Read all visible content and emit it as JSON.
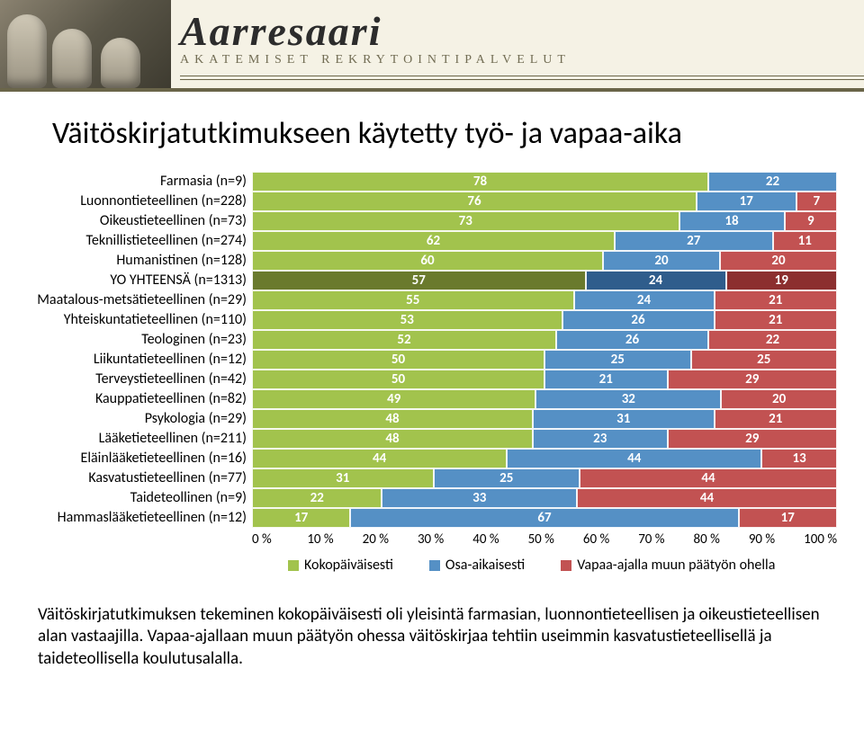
{
  "banner": {
    "brand": "Aarresaari",
    "subtitle": "Akatemiset Rekrytointipalvelut"
  },
  "title": "Väitöskirjatutkimukseen käytetty työ- ja vapaa-aika",
  "chart": {
    "type": "stacked-bar-horizontal",
    "xticks": [
      "0 %",
      "10 %",
      "20 %",
      "30 %",
      "40 %",
      "50 %",
      "60 %",
      "70 %",
      "80 %",
      "90 %",
      "100 %"
    ],
    "series": [
      {
        "key": "full",
        "label": "Kokopäiväisesti",
        "color": "#a2c34d"
      },
      {
        "key": "part",
        "label": "Osa-aikaisesti",
        "color": "#5590c5"
      },
      {
        "key": "side",
        "label": "Vapaa-ajalla muun päätyön ohella",
        "color": "#c25252"
      }
    ],
    "total_row_index": 5,
    "total_colors": {
      "full": "#6a7a2d",
      "part": "#2f5d8c",
      "side": "#8c2f2f"
    },
    "categories": [
      {
        "label": "Farmasia (n=9)",
        "v": [
          78,
          22,
          0
        ]
      },
      {
        "label": "Luonnontieteellinen (n=228)",
        "v": [
          76,
          17,
          7
        ]
      },
      {
        "label": "Oikeustieteellinen (n=73)",
        "v": [
          73,
          18,
          9
        ]
      },
      {
        "label": "Teknillistieteellinen (n=274)",
        "v": [
          62,
          27,
          11
        ]
      },
      {
        "label": "Humanistinen (n=128)",
        "v": [
          60,
          20,
          20
        ]
      },
      {
        "label": "YO YHTEENSÄ (n=1313)",
        "v": [
          57,
          24,
          19
        ]
      },
      {
        "label": "Maatalous-metsätieteellinen (n=29)",
        "v": [
          55,
          24,
          21
        ]
      },
      {
        "label": "Yhteiskuntatieteellinen (n=110)",
        "v": [
          53,
          26,
          21
        ]
      },
      {
        "label": "Teologinen (n=23)",
        "v": [
          52,
          26,
          22
        ]
      },
      {
        "label": "Liikuntatieteellinen (n=12)",
        "v": [
          50,
          25,
          25
        ]
      },
      {
        "label": "Terveystieteellinen (n=42)",
        "v": [
          50,
          21,
          29
        ]
      },
      {
        "label": "Kauppatieteellinen (n=82)",
        "v": [
          49,
          32,
          20
        ]
      },
      {
        "label": "Psykologia (n=29)",
        "v": [
          48,
          31,
          21
        ]
      },
      {
        "label": "Lääketieteellinen (n=211)",
        "v": [
          48,
          23,
          29
        ]
      },
      {
        "label": "Eläinlääketieteellinen (n=16)",
        "v": [
          44,
          44,
          13
        ]
      },
      {
        "label": "Kasvatustieteellinen (n=77)",
        "v": [
          31,
          25,
          44
        ]
      },
      {
        "label": "Taideteollinen (n=9)",
        "v": [
          22,
          33,
          44
        ]
      },
      {
        "label": "Hammaslääketieteellinen (n=12)",
        "v": [
          17,
          67,
          17
        ]
      }
    ],
    "label_fontsize": 16,
    "value_fontsize": 15,
    "background": "#ffffff"
  },
  "caption": "Väitöskirjatutkimuksen tekeminen kokopäiväisesti oli yleisintä farmasian, luonnontieteellisen ja oikeustieteellisen alan vastaajilla. Vapaa-ajallaan muun päätyön ohessa väitöskirjaa tehtiin useimmin kasvatustieteellisellä ja taideteollisella koulutusalalla."
}
